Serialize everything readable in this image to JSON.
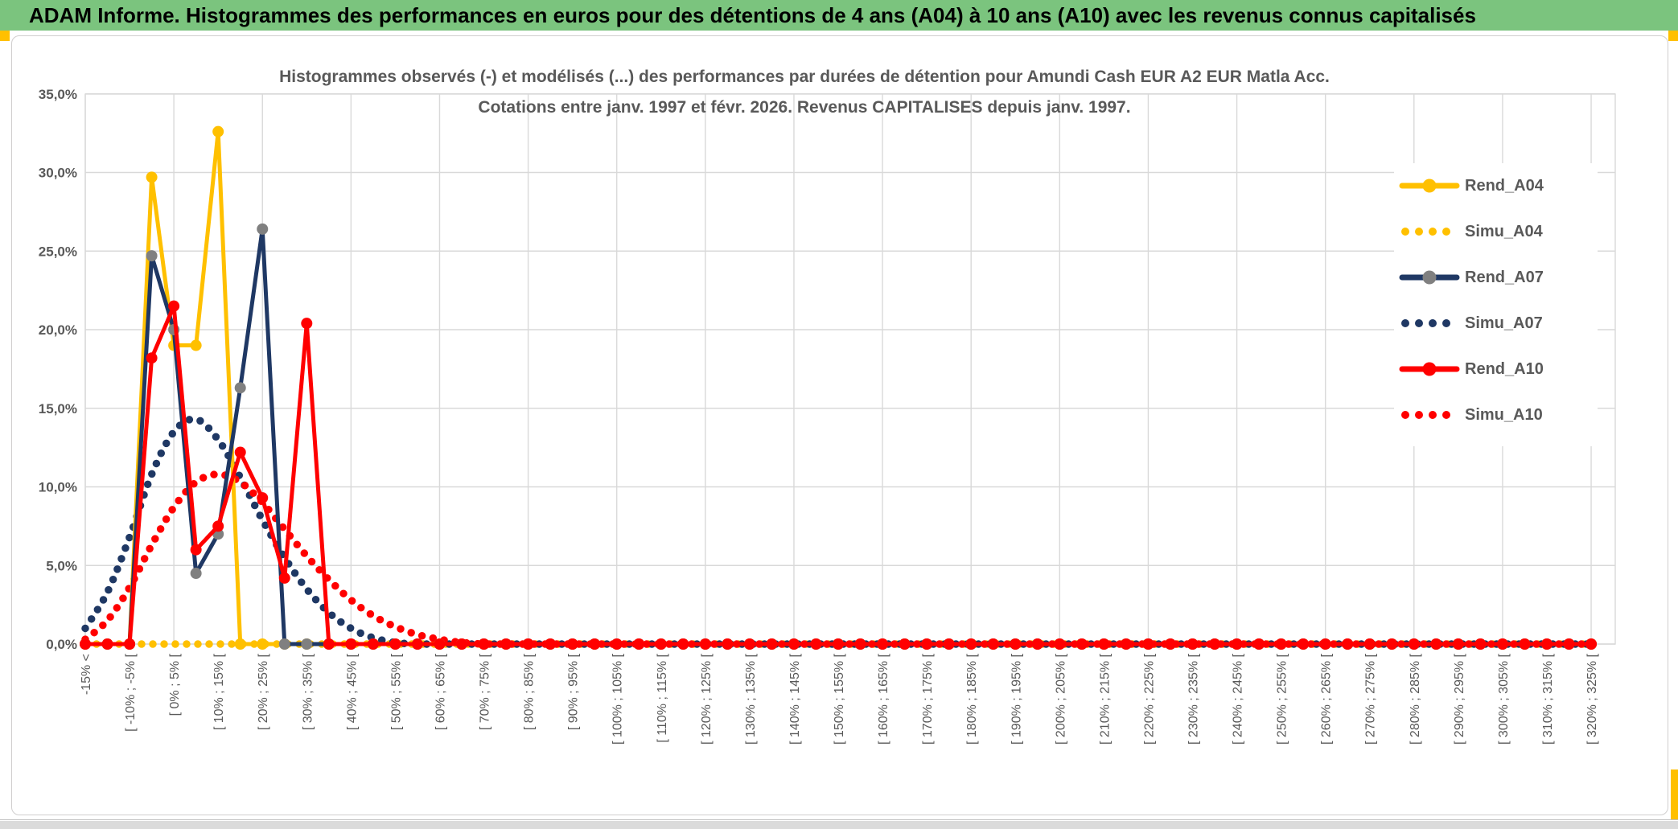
{
  "header": {
    "title": "ADAM Informe. Histogrammes des performances en euros pour des détentions de 4 ans (A04) à 10 ans (A10) avec les revenus connus capitalisés",
    "bg_color": "#7BC47E"
  },
  "chart": {
    "title_line1": "Histogrammes observés (-) et modélisés (...) des performances par durées de détention pour Amundi Cash EUR A2 EUR Matla Acc.",
    "title_line2": "Cotations entre janv. 1997 et févr. 2026. Revenus CAPITALISES depuis janv. 1997.",
    "y_labels": [
      "0,0%",
      "5,0%",
      "10,0%",
      "15,0%",
      "20,0%",
      "25,0%",
      "30,0%",
      "35,0%"
    ],
    "colors": {
      "gold": "#FFC000",
      "navy": "#1F3864",
      "red": "#FF0000",
      "gray_marker": "#808080",
      "grid": "#D9D9D9",
      "axis_text": "#595959"
    }
  },
  "chart_data": {
    "type": "line",
    "title": "Histogrammes observés (-) et modélisés (...) des performances par durées de détention pour Amundi Cash EUR A2 EUR Matla Acc. Cotations entre janv. 1997 et févr. 2026. Revenus CAPITALISES depuis janv. 1997.",
    "xlabel": "",
    "ylabel": "",
    "ylim": [
      0,
      35
    ],
    "y_tick_step_pct": 5,
    "grid": true,
    "legend_position": "right",
    "x_bins": {
      "count": 69,
      "start_pct": -15,
      "width_pct": 5,
      "labeled_every_2nd": true
    },
    "x_labels_shown": [
      "-15% <",
      "[ -10% ; -5% [",
      "[ 0% ; 5% [",
      "[ 10% ; 15% [",
      "[ 20% ; 25% [",
      "[ 30% ; 35% [",
      "[ 40% ; 45% [",
      "[ 50% ; 55% [",
      "[ 60% ; 65% [",
      "[ 70% ; 75% [",
      "[ 80% ; 85% [",
      "[ 90% ; 95% [",
      "[ 100% ; 105% [",
      "[ 110% ; 115% [",
      "[ 120% ; 125% [",
      "[ 130% ; 135% [",
      "[ 140% ; 145% [",
      "[ 150% ; 155% [",
      "[ 160% ; 165% [",
      "[ 170% ; 175% [",
      "[ 180% ; 185% [",
      "[ 190% ; 195% [",
      "[ 200% ; 205% [",
      "[ 210% ; 215% [",
      "[ 220% ; 225% [",
      "[ 230% ; 235% [",
      "[ 240% ; 245% [",
      "[ 250% ; 255% [",
      "[ 260% ; 265% [",
      "[ 270% ; 275% [",
      "[ 280% ; 285% [",
      "[ 290% ; 295% [",
      "[ 300% ; 305% [",
      "[ 310% ; 315% [",
      "[ 320% ; 325% [",
      ""
    ],
    "series": [
      {
        "name": "Rend_A04",
        "style": "solid",
        "color": "#FFC000",
        "marker_color": "#FFC000",
        "values": [
          0,
          0,
          0,
          29.7,
          19,
          19,
          32.6,
          0,
          0,
          0,
          0,
          0,
          0,
          0,
          0,
          0,
          0,
          0,
          0,
          0,
          0,
          0,
          0,
          0,
          0,
          0,
          0,
          0,
          0,
          0,
          0,
          0,
          0,
          0,
          0,
          0,
          0,
          0,
          0,
          0,
          0,
          0,
          0,
          0,
          0,
          0,
          0,
          0,
          0,
          0,
          0,
          0,
          0,
          0,
          0,
          0,
          0,
          0,
          0,
          0,
          0,
          0,
          0,
          0,
          0,
          0,
          0,
          0,
          0
        ]
      },
      {
        "name": "Simu_A04",
        "style": "dotted",
        "color": "#FFC000",
        "marker_color": "#FFC000",
        "values": [
          0,
          0,
          0,
          0,
          0,
          0,
          0,
          0,
          0,
          0,
          0,
          0,
          0,
          0,
          0,
          0,
          0,
          0,
          0,
          0,
          0,
          0,
          0,
          0,
          0,
          0,
          0,
          0,
          0,
          0,
          0,
          0,
          0,
          0,
          0,
          0,
          0,
          0,
          0,
          0,
          0,
          0,
          0,
          0,
          0,
          0,
          0,
          0,
          0,
          0,
          0,
          0,
          0,
          0,
          0,
          0,
          0,
          0,
          0,
          0,
          0,
          0,
          0,
          0,
          0,
          0,
          0,
          0,
          0
        ]
      },
      {
        "name": "Rend_A07",
        "style": "solid",
        "color": "#1F3864",
        "marker_color": "#808080",
        "values": [
          0,
          0,
          0,
          24.7,
          20,
          4.5,
          7,
          16.3,
          26.4,
          0,
          0,
          0,
          0,
          0,
          0,
          0,
          0,
          0,
          0,
          0,
          0,
          0,
          0,
          0,
          0,
          0,
          0,
          0,
          0,
          0,
          0,
          0,
          0,
          0,
          0,
          0,
          0,
          0,
          0,
          0,
          0,
          0,
          0,
          0,
          0,
          0,
          0,
          0,
          0,
          0,
          0,
          0,
          0,
          0,
          0,
          0,
          0,
          0,
          0,
          0,
          0,
          0,
          0,
          0,
          0,
          0,
          0,
          0,
          0
        ]
      },
      {
        "name": "Simu_A07",
        "style": "dotted",
        "color": "#1F3864",
        "marker_color": "#1F3864",
        "values": [
          1,
          3.3,
          6.8,
          10.8,
          13.5,
          14.3,
          13,
          10.6,
          7.9,
          5.5,
          3.5,
          2,
          1,
          0.4,
          0.1,
          0,
          0,
          0,
          0,
          0,
          0,
          0,
          0,
          0,
          0,
          0,
          0,
          0,
          0,
          0,
          0,
          0,
          0,
          0,
          0,
          0,
          0,
          0,
          0,
          0,
          0,
          0,
          0,
          0,
          0,
          0,
          0,
          0,
          0,
          0,
          0,
          0,
          0,
          0,
          0,
          0,
          0,
          0,
          0,
          0,
          0,
          0,
          0,
          0,
          0,
          0,
          0,
          0,
          0
        ]
      },
      {
        "name": "Rend_A10",
        "style": "solid",
        "color": "#FF0000",
        "marker_color": "#FF0000",
        "values": [
          0,
          0,
          0,
          18.2,
          21.5,
          6,
          7.5,
          12.2,
          9.3,
          4.2,
          20.4,
          0,
          0,
          0,
          0,
          0,
          0,
          0,
          0,
          0,
          0,
          0,
          0,
          0,
          0,
          0,
          0,
          0,
          0,
          0,
          0,
          0,
          0,
          0,
          0,
          0,
          0,
          0,
          0,
          0,
          0,
          0,
          0,
          0,
          0,
          0,
          0,
          0,
          0,
          0,
          0,
          0,
          0,
          0,
          0,
          0,
          0,
          0,
          0,
          0,
          0,
          0,
          0,
          0,
          0,
          0,
          0,
          0,
          0
        ]
      },
      {
        "name": "Simu_A10",
        "style": "dotted",
        "color": "#FF0000",
        "marker_color": "#FF0000",
        "values": [
          0.3,
          1.5,
          3.6,
          6.3,
          8.7,
          10.3,
          10.8,
          10.3,
          9,
          7.3,
          5.6,
          4.1,
          2.8,
          1.8,
          1.1,
          0.6,
          0.3,
          0.1,
          0,
          0,
          0,
          0,
          0,
          0,
          0,
          0,
          0,
          0,
          0,
          0,
          0,
          0,
          0,
          0,
          0,
          0,
          0,
          0,
          0,
          0,
          0,
          0,
          0,
          0,
          0,
          0,
          0,
          0,
          0,
          0,
          0,
          0,
          0,
          0,
          0,
          0,
          0,
          0,
          0,
          0,
          0,
          0,
          0,
          0,
          0,
          0,
          0,
          0,
          0
        ]
      }
    ],
    "draw_order": [
      "Simu_A04",
      "Simu_A07",
      "Simu_A10",
      "Rend_A04",
      "Rend_A07",
      "Rend_A10"
    ]
  }
}
